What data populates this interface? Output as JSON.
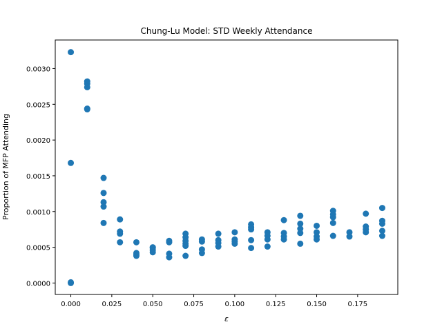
{
  "chart_data": {
    "type": "scatter",
    "title": "Chung-Lu Model: STD Weekly Attendance",
    "xlabel": "ε",
    "ylabel": "Proportion of MFP Attending",
    "xlim": [
      -0.0095,
      0.1995
    ],
    "ylim": [
      -0.00016,
      0.0034
    ],
    "xticks": [
      "0.000",
      "0.025",
      "0.050",
      "0.075",
      "0.100",
      "0.125",
      "0.150",
      "0.175"
    ],
    "yticks": [
      "0.0000",
      "0.0005",
      "0.0010",
      "0.0015",
      "0.0020",
      "0.0025",
      "0.0030"
    ],
    "grid": false,
    "color": "#1f77b4",
    "points": [
      [
        0.0,
        0.00323
      ],
      [
        0.0,
        0.00168
      ],
      [
        0.0,
        0.0
      ],
      [
        0.0,
        1e-05
      ],
      [
        0.01,
        0.00282
      ],
      [
        0.01,
        0.00279
      ],
      [
        0.01,
        0.00274
      ],
      [
        0.01,
        0.00244
      ],
      [
        0.01,
        0.00243
      ],
      [
        0.02,
        0.00147
      ],
      [
        0.02,
        0.00126
      ],
      [
        0.02,
        0.00113
      ],
      [
        0.02,
        0.00107
      ],
      [
        0.02,
        0.00084
      ],
      [
        0.03,
        0.00089
      ],
      [
        0.03,
        0.00072
      ],
      [
        0.03,
        0.00069
      ],
      [
        0.03,
        0.00057
      ],
      [
        0.04,
        0.00057
      ],
      [
        0.04,
        0.00042
      ],
      [
        0.04,
        0.0004
      ],
      [
        0.04,
        0.00038
      ],
      [
        0.05,
        0.0005
      ],
      [
        0.05,
        0.00049
      ],
      [
        0.05,
        0.00046
      ],
      [
        0.05,
        0.00043
      ],
      [
        0.06,
        0.00059
      ],
      [
        0.06,
        0.00057
      ],
      [
        0.06,
        0.00041
      ],
      [
        0.06,
        0.00036
      ],
      [
        0.07,
        0.00069
      ],
      [
        0.07,
        0.00064
      ],
      [
        0.07,
        0.00059
      ],
      [
        0.07,
        0.00055
      ],
      [
        0.07,
        0.00052
      ],
      [
        0.07,
        0.00038
      ],
      [
        0.08,
        0.00061
      ],
      [
        0.08,
        0.00058
      ],
      [
        0.08,
        0.00047
      ],
      [
        0.08,
        0.00042
      ],
      [
        0.09,
        0.00069
      ],
      [
        0.09,
        0.0006
      ],
      [
        0.09,
        0.00056
      ],
      [
        0.09,
        0.00051
      ],
      [
        0.1,
        0.00071
      ],
      [
        0.1,
        0.00061
      ],
      [
        0.1,
        0.00058
      ],
      [
        0.1,
        0.00055
      ],
      [
        0.11,
        0.00082
      ],
      [
        0.11,
        0.00078
      ],
      [
        0.11,
        0.00075
      ],
      [
        0.11,
        0.0006
      ],
      [
        0.11,
        0.00049
      ],
      [
        0.12,
        0.00071
      ],
      [
        0.12,
        0.00066
      ],
      [
        0.12,
        0.00061
      ],
      [
        0.12,
        0.00051
      ],
      [
        0.13,
        0.00088
      ],
      [
        0.13,
        0.0007
      ],
      [
        0.13,
        0.00065
      ],
      [
        0.13,
        0.00061
      ],
      [
        0.14,
        0.00094
      ],
      [
        0.14,
        0.00083
      ],
      [
        0.14,
        0.00076
      ],
      [
        0.14,
        0.0007
      ],
      [
        0.14,
        0.00055
      ],
      [
        0.15,
        0.0008
      ],
      [
        0.15,
        0.00071
      ],
      [
        0.15,
        0.00065
      ],
      [
        0.15,
        0.00061
      ],
      [
        0.16,
        0.00101
      ],
      [
        0.16,
        0.00096
      ],
      [
        0.16,
        0.00092
      ],
      [
        0.16,
        0.00084
      ],
      [
        0.16,
        0.00066
      ],
      [
        0.17,
        0.00071
      ],
      [
        0.17,
        0.00065
      ],
      [
        0.18,
        0.00097
      ],
      [
        0.18,
        0.00079
      ],
      [
        0.18,
        0.00075
      ],
      [
        0.18,
        0.00071
      ],
      [
        0.19,
        0.00105
      ],
      [
        0.19,
        0.00087
      ],
      [
        0.19,
        0.00083
      ],
      [
        0.19,
        0.00073
      ],
      [
        0.19,
        0.00066
      ]
    ]
  }
}
